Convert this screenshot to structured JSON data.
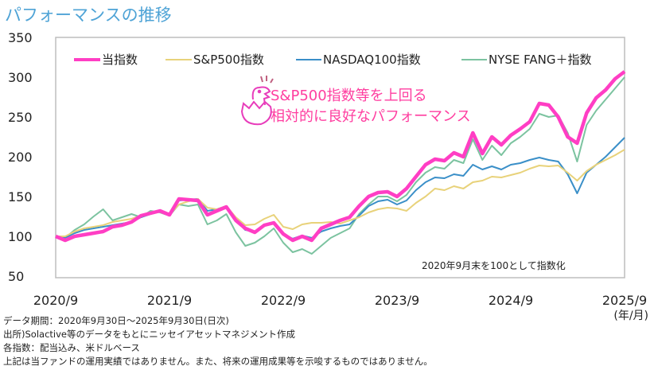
{
  "title": "パフォーマンスの推移",
  "chart_data": {
    "type": "line",
    "title": "パフォーマンスの推移",
    "x_start": "2020/9",
    "x_end": "2025/9",
    "x_frequency": "monthly (approximated from daily)",
    "xticks": [
      "2020/9",
      "2021/9",
      "2022/9",
      "2023/9",
      "2024/9",
      "2025/9"
    ],
    "xlabel": "(年/月)",
    "yticks": [
      350,
      300,
      250,
      200,
      150,
      100,
      50
    ],
    "ylim": [
      50,
      350
    ],
    "legend": "top",
    "series": [
      {
        "name": "NYSE FANG＋指数",
        "color": "#7cc3a0",
        "width": 2,
        "values": [
          100,
          98,
          108,
          115,
          125,
          134,
          120,
          124,
          128,
          124,
          132,
          130,
          126,
          140,
          138,
          140,
          115,
          120,
          128,
          105,
          88,
          92,
          100,
          110,
          92,
          80,
          84,
          78,
          88,
          98,
          104,
          110,
          128,
          140,
          150,
          150,
          144,
          152,
          168,
          180,
          187,
          185,
          196,
          192,
          222,
          196,
          214,
          202,
          217,
          225,
          235,
          254,
          250,
          252,
          230,
          194,
          240,
          258,
          272,
          286,
          300
        ]
      },
      {
        "name": "NASDAQ100指数",
        "color": "#3a8fc8",
        "width": 2,
        "values": [
          100,
          98,
          104,
          108,
          110,
          112,
          114,
          116,
          118,
          124,
          128,
          132,
          126,
          145,
          146,
          147,
          132,
          134,
          138,
          120,
          108,
          106,
          114,
          118,
          103,
          97,
          101,
          98,
          106,
          110,
          113,
          115,
          126,
          138,
          144,
          146,
          140,
          145,
          158,
          168,
          174,
          173,
          178,
          176,
          190,
          184,
          188,
          184,
          190,
          192,
          196,
          199,
          196,
          194,
          178,
          154,
          180,
          190,
          200,
          212,
          224
        ]
      },
      {
        "name": "S&P500指数",
        "color": "#e8d27a",
        "width": 2,
        "values": [
          100,
          100,
          106,
          110,
          112,
          114,
          118,
          120,
          122,
          126,
          128,
          131,
          127,
          140,
          144,
          147,
          136,
          134,
          138,
          124,
          114,
          115,
          122,
          127,
          112,
          109,
          115,
          117,
          117,
          118,
          116,
          120,
          124,
          130,
          134,
          136,
          135,
          132,
          142,
          150,
          160,
          158,
          163,
          160,
          168,
          170,
          175,
          174,
          177,
          180,
          185,
          189,
          188,
          189,
          180,
          170,
          182,
          190,
          196,
          202,
          209
        ]
      },
      {
        "name": "当指数",
        "color": "#ff3ec4",
        "width": 4.5,
        "values": [
          100,
          95,
          100,
          102,
          104,
          106,
          112,
          114,
          118,
          126,
          129,
          132,
          127,
          147,
          146,
          145,
          127,
          132,
          137,
          120,
          110,
          105,
          114,
          117,
          103,
          95,
          100,
          95,
          110,
          115,
          120,
          124,
          138,
          150,
          155,
          156,
          150,
          160,
          175,
          190,
          197,
          195,
          205,
          200,
          230,
          204,
          225,
          215,
          227,
          235,
          244,
          267,
          265,
          250,
          225,
          217,
          255,
          274,
          284,
          298,
          307
        ]
      }
    ],
    "annotation": [
      "S&P500指数等を上回る",
      "相対的に良好なパフォーマンス"
    ],
    "note": "2020年9月末を100として指数化"
  },
  "legend": [
    "当指数",
    "S&P500指数",
    "NASDAQ100指数",
    "NYSE FANG＋指数"
  ],
  "footer": [
    "データ期間：2020年9月30日～2025年9月30日(日次)",
    "出所)Solactive等のデータをもとにニッセイアセットマネジメント作成",
    "各指数：配当込み、米ドルベース",
    "上記は当ファンドの運用実績ではありません。また、将来の運用成果等を示唆するものではありません。"
  ],
  "colors": {
    "title": "#4ea3d6",
    "accent": "#ff3ea0"
  }
}
